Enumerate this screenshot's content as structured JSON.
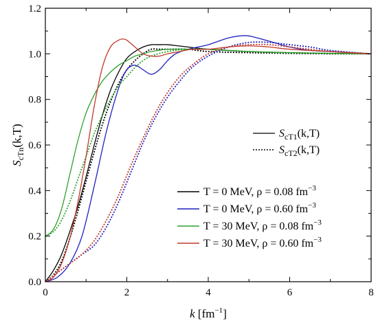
{
  "chart_data": {
    "type": "line",
    "xlim": [
      0,
      8
    ],
    "ylim": [
      0,
      1.2
    ],
    "xticks": [
      "0",
      "2",
      "4",
      "6",
      "8"
    ],
    "yticks": [
      "0.0",
      "0.2",
      "0.4",
      "0.6",
      "0.8",
      "1.0",
      "1.2"
    ],
    "xlabel": {
      "var": "k",
      "unit_open": " [fm",
      "unit_sup": "−1",
      "unit_close": "]"
    },
    "ylabel": {
      "main": "S",
      "sub": "cTn",
      "args": "(k,T)"
    },
    "grid": false,
    "style_legend": {
      "placement": "right-middle",
      "entries": [
        {
          "style": "solid",
          "main": "S",
          "sub": "cT1",
          "args": "(k,T)"
        },
        {
          "style": "dotted",
          "main": "S",
          "sub": "cT2",
          "args": "(k,T)"
        }
      ]
    },
    "color_legend": {
      "placement": "bottom-right",
      "entries": [
        {
          "color": "#000000",
          "label": "T =   0 MeV,  ρ = 0.08 fm",
          "sup": "−3"
        },
        {
          "color": "#1f1fbf",
          "label": "T =   0 MeV,  ρ = 0.60 fm",
          "sup": "−3"
        },
        {
          "color": "#2ca02c",
          "label": "T = 30 MeV,  ρ = 0.08 fm",
          "sup": "−3"
        },
        {
          "color": "#c0392b",
          "label": "T = 30 MeV,  ρ = 0.60 fm",
          "sup": "−3"
        }
      ]
    },
    "series": [
      {
        "color": "#000000",
        "style": "solid",
        "x": [
          0,
          0.2,
          0.4,
          0.6,
          0.8,
          1.0,
          1.2,
          1.4,
          1.6,
          1.8,
          2.0,
          2.2,
          2.4,
          2.6,
          2.8,
          3.0,
          3.5,
          4.0,
          5.0,
          6.0,
          7.0,
          8.0
        ],
        "y": [
          0,
          0.05,
          0.12,
          0.22,
          0.33,
          0.46,
          0.6,
          0.73,
          0.84,
          0.92,
          0.98,
          1.01,
          1.03,
          1.04,
          1.04,
          1.04,
          1.03,
          1.02,
          1.01,
          1.005,
          1.002,
          1.0
        ]
      },
      {
        "color": "#000000",
        "style": "dotted",
        "x": [
          0,
          0.2,
          0.4,
          0.6,
          0.8,
          1.0,
          1.2,
          1.4,
          1.6,
          1.8,
          2.0,
          2.2,
          2.4,
          2.6,
          2.8,
          3.0,
          3.5,
          4.0,
          5.0,
          6.0,
          7.0,
          8.0
        ],
        "y": [
          0,
          0.03,
          0.09,
          0.19,
          0.31,
          0.44,
          0.57,
          0.69,
          0.79,
          0.87,
          0.93,
          0.97,
          1.0,
          1.02,
          1.02,
          1.02,
          1.02,
          1.01,
          1.005,
          1.002,
          1.0,
          1.0
        ]
      },
      {
        "color": "#1f1fbf",
        "style": "solid",
        "x": [
          0,
          0.3,
          0.6,
          0.9,
          1.2,
          1.5,
          1.8,
          2.0,
          2.2,
          2.4,
          2.6,
          2.8,
          3.0,
          3.2,
          3.5,
          4.0,
          4.5,
          4.9,
          5.2,
          5.6,
          6.0,
          6.5,
          7.0,
          7.5,
          8.0
        ],
        "y": [
          0,
          0.02,
          0.08,
          0.2,
          0.42,
          0.66,
          0.85,
          0.93,
          0.95,
          0.93,
          0.91,
          0.93,
          0.97,
          1.0,
          1.02,
          1.04,
          1.07,
          1.08,
          1.07,
          1.05,
          1.03,
          1.015,
          1.01,
          1.005,
          1.0
        ]
      },
      {
        "color": "#1f1fbf",
        "style": "dotted",
        "x": [
          0,
          0.3,
          0.6,
          0.9,
          1.2,
          1.5,
          1.8,
          2.1,
          2.4,
          2.7,
          3.0,
          3.3,
          3.6,
          4.0,
          4.5,
          5.0,
          5.5,
          6.0,
          6.5,
          7.0,
          8.0
        ],
        "y": [
          0,
          0.04,
          0.08,
          0.12,
          0.16,
          0.24,
          0.35,
          0.48,
          0.61,
          0.72,
          0.81,
          0.88,
          0.94,
          0.99,
          1.03,
          1.05,
          1.05,
          1.04,
          1.03,
          1.015,
          1.0
        ]
      },
      {
        "color": "#2ca02c",
        "style": "solid",
        "x": [
          0,
          0.2,
          0.4,
          0.6,
          0.8,
          1.0,
          1.2,
          1.4,
          1.6,
          1.8,
          2.0,
          2.2,
          2.4,
          2.6,
          3.0,
          3.5,
          4.0,
          5.0,
          6.0,
          7.0,
          8.0
        ],
        "y": [
          0.2,
          0.23,
          0.32,
          0.47,
          0.62,
          0.74,
          0.82,
          0.88,
          0.92,
          0.95,
          0.97,
          0.99,
          1.0,
          1.01,
          1.02,
          1.02,
          1.02,
          1.01,
          1.005,
          1.002,
          1.0
        ]
      },
      {
        "color": "#2ca02c",
        "style": "dotted",
        "x": [
          0,
          0.2,
          0.4,
          0.6,
          0.8,
          1.0,
          1.2,
          1.4,
          1.6,
          1.8,
          2.0,
          2.2,
          2.4,
          2.6,
          3.0,
          3.5,
          4.0,
          5.0,
          6.0,
          7.0,
          8.0
        ],
        "y": [
          0.2,
          0.22,
          0.27,
          0.35,
          0.45,
          0.55,
          0.65,
          0.73,
          0.8,
          0.86,
          0.9,
          0.94,
          0.97,
          0.99,
          1.01,
          1.02,
          1.02,
          1.01,
          1.005,
          1.002,
          1.0
        ]
      },
      {
        "color": "#c0392b",
        "style": "solid",
        "x": [
          0,
          0.2,
          0.4,
          0.6,
          0.8,
          1.0,
          1.2,
          1.4,
          1.6,
          1.8,
          1.9,
          2.0,
          2.2,
          2.4,
          2.6,
          2.8,
          3.0,
          3.3,
          3.6,
          4.0,
          4.5,
          5.0,
          5.5,
          6.0,
          7.0,
          8.0
        ],
        "y": [
          0,
          0.02,
          0.08,
          0.19,
          0.35,
          0.55,
          0.77,
          0.94,
          1.03,
          1.06,
          1.065,
          1.06,
          1.03,
          1.0,
          0.99,
          0.99,
          1.0,
          1.01,
          1.02,
          1.02,
          1.03,
          1.035,
          1.03,
          1.02,
          1.01,
          1.0
        ]
      },
      {
        "color": "#c0392b",
        "style": "dotted",
        "x": [
          0,
          0.3,
          0.6,
          0.9,
          1.2,
          1.5,
          1.8,
          2.1,
          2.4,
          2.7,
          3.0,
          3.3,
          3.6,
          4.0,
          4.5,
          5.0,
          5.5,
          6.0,
          6.5,
          7.0,
          8.0
        ],
        "y": [
          0,
          0.04,
          0.08,
          0.12,
          0.18,
          0.27,
          0.38,
          0.51,
          0.63,
          0.74,
          0.83,
          0.9,
          0.95,
          1.0,
          1.03,
          1.04,
          1.04,
          1.03,
          1.02,
          1.01,
          1.0
        ]
      }
    ]
  }
}
